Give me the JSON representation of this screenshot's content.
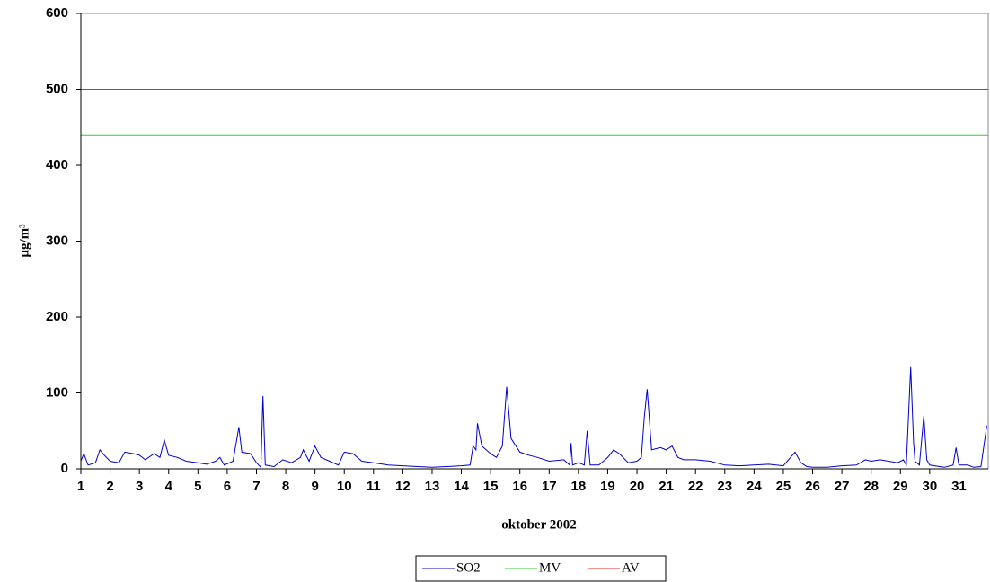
{
  "chart_data": {
    "type": "line",
    "x_label": "oktober 2002",
    "y_label": "µg/m³",
    "xlim": [
      1,
      32
    ],
    "xticks": [
      1,
      2,
      3,
      4,
      5,
      6,
      7,
      8,
      9,
      10,
      11,
      12,
      13,
      14,
      15,
      16,
      17,
      18,
      19,
      20,
      21,
      22,
      23,
      24,
      25,
      26,
      27,
      28,
      29,
      30,
      31
    ],
    "ylim": [
      0,
      600
    ],
    "yticks": [
      0,
      100,
      200,
      300,
      400,
      500,
      600
    ],
    "grid": false,
    "legend": "bottom",
    "series": [
      {
        "name": "SO2",
        "color": "#0000cc",
        "x": [
          1.0,
          1.1,
          1.25,
          1.5,
          1.65,
          1.8,
          2.0,
          2.3,
          2.5,
          2.8,
          3.0,
          3.2,
          3.5,
          3.7,
          3.85,
          4.0,
          4.3,
          4.6,
          5.0,
          5.3,
          5.6,
          5.75,
          5.9,
          6.2,
          6.4,
          6.5,
          6.8,
          7.0,
          7.15,
          7.22,
          7.3,
          7.6,
          7.9,
          8.2,
          8.5,
          8.6,
          8.8,
          9.0,
          9.2,
          9.5,
          9.8,
          10.0,
          10.3,
          10.6,
          11.0,
          11.5,
          12.0,
          12.5,
          13.0,
          13.5,
          14.0,
          14.3,
          14.4,
          14.5,
          14.55,
          14.7,
          15.0,
          15.2,
          15.4,
          15.55,
          15.7,
          16.0,
          16.3,
          16.6,
          17.0,
          17.5,
          17.7,
          17.75,
          17.8,
          18.0,
          18.2,
          18.3,
          18.4,
          18.7,
          19.0,
          19.2,
          19.4,
          19.7,
          20.0,
          20.15,
          20.25,
          20.35,
          20.5,
          20.8,
          21.0,
          21.2,
          21.4,
          21.6,
          22.0,
          22.5,
          23.0,
          23.5,
          24.0,
          24.5,
          25.0,
          25.4,
          25.6,
          25.8,
          26.0,
          26.5,
          27.0,
          27.5,
          27.8,
          28.0,
          28.3,
          28.6,
          28.9,
          29.1,
          29.2,
          29.35,
          29.45,
          29.5,
          29.65,
          29.8,
          29.9,
          30.0,
          30.5,
          30.8,
          30.9,
          31.0,
          31.3,
          31.5,
          31.75,
          31.95
        ],
        "values": [
          10,
          20,
          5,
          8,
          25,
          18,
          10,
          8,
          22,
          20,
          18,
          12,
          20,
          15,
          38,
          18,
          15,
          10,
          8,
          6,
          10,
          15,
          5,
          10,
          55,
          22,
          20,
          8,
          2,
          96,
          5,
          3,
          12,
          8,
          15,
          25,
          10,
          30,
          15,
          10,
          5,
          22,
          20,
          10,
          8,
          5,
          4,
          3,
          2,
          3,
          4,
          5,
          30,
          25,
          60,
          30,
          20,
          15,
          30,
          108,
          40,
          22,
          18,
          15,
          10,
          12,
          5,
          34,
          5,
          8,
          5,
          50,
          5,
          5,
          15,
          25,
          20,
          8,
          10,
          15,
          68,
          105,
          25,
          28,
          25,
          30,
          15,
          12,
          12,
          10,
          5,
          4,
          5,
          6,
          4,
          22,
          8,
          3,
          2,
          2,
          4,
          5,
          12,
          10,
          12,
          10,
          8,
          12,
          5,
          134,
          35,
          10,
          5,
          70,
          12,
          5,
          2,
          5,
          28,
          5,
          5,
          2,
          3,
          57
        ]
      },
      {
        "name": "MV",
        "color": "#33cc33",
        "x": [
          1,
          32
        ],
        "values": [
          440,
          440
        ]
      },
      {
        "name": "AV",
        "color": "#ee2222",
        "x": [
          1,
          32
        ],
        "values": [
          500,
          500
        ]
      }
    ]
  }
}
